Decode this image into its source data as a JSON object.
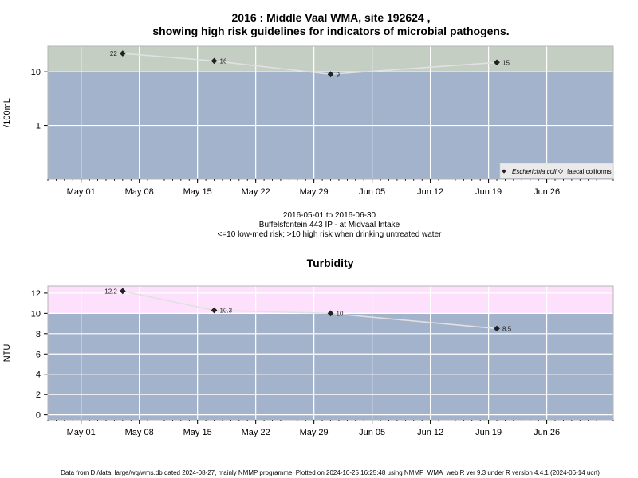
{
  "page": {
    "title_line1": "2016 : Middle Vaal WMA, site 192624 ,",
    "title_line2": "showing high risk guidelines for indicators of microbial pathogens.",
    "caption_line1": "2016-05-01 to 2016-06-30",
    "caption_line2": "Buffelsfontein 443 IP - at Midvaal Intake",
    "caption_line3": "<=10 low-med risk; >10 high risk when drinking untreated water",
    "footer": "Data from D:/data_large/wq/wms.db dated 2024-08-27, mainly NMMP programme. Plotted on 2024-10-25 16:25:48 using NMMP_WMA_web.R ver 9.3 under R version 4.4.1 (2024-06-14 ucrt)"
  },
  "colors": {
    "panel_low": "#a3b3cb",
    "panel_high_micro": "#c4cec3",
    "panel_high_turb": "#fde0fb",
    "grid": "#ffffff",
    "line": "#e1e1e1",
    "marker": "#222222"
  },
  "chart_data": [
    {
      "type": "line",
      "title": "",
      "xlabel": "",
      "ylabel": "/100mL",
      "yscale": "log",
      "xlim": [
        "2016-04-27",
        "2016-07-04"
      ],
      "ylim": [
        0.1,
        30
      ],
      "yticks": [
        1,
        10
      ],
      "ytick_labels": [
        "1",
        "10"
      ],
      "xticks": [
        "2016-05-01",
        "2016-05-08",
        "2016-05-15",
        "2016-05-22",
        "2016-05-29",
        "2016-06-05",
        "2016-06-12",
        "2016-06-19",
        "2016-06-26"
      ],
      "xtick_labels": [
        "May 01",
        "May 08",
        "May 15",
        "May 22",
        "May 29",
        "Jun 05",
        "Jun 12",
        "Jun 19",
        "Jun 26"
      ],
      "threshold": 10,
      "grid": true,
      "legend_position": "bottom-right",
      "series": [
        {
          "name": "Escherichia coli",
          "marker": "filled-diamond",
          "x": [
            "2016-05-06",
            "2016-05-17",
            "2016-05-31",
            "2016-06-20"
          ],
          "y": [
            22,
            16,
            9,
            15
          ],
          "labels": [
            "22",
            "16",
            "9",
            "15"
          ]
        },
        {
          "name": "faecal coliforms",
          "marker": "open-diamond",
          "x": [],
          "y": [],
          "labels": []
        }
      ]
    },
    {
      "type": "line",
      "title": "Turbidity",
      "xlabel": "",
      "ylabel": "NTU",
      "yscale": "linear",
      "xlim": [
        "2016-04-27",
        "2016-07-04"
      ],
      "ylim": [
        -0.5,
        12.7
      ],
      "yticks": [
        0,
        2,
        4,
        6,
        8,
        10,
        12
      ],
      "ytick_labels": [
        "0",
        "2",
        "4",
        "6",
        "8",
        "10",
        "12"
      ],
      "xticks": [
        "2016-05-01",
        "2016-05-08",
        "2016-05-15",
        "2016-05-22",
        "2016-05-29",
        "2016-06-05",
        "2016-06-12",
        "2016-06-19",
        "2016-06-26"
      ],
      "xtick_labels": [
        "May 01",
        "May 08",
        "May 15",
        "May 22",
        "May 29",
        "Jun 05",
        "Jun 12",
        "Jun 19",
        "Jun 26"
      ],
      "threshold": 10,
      "grid": true,
      "series": [
        {
          "marker": "filled-diamond",
          "x": [
            "2016-05-06",
            "2016-05-17",
            "2016-05-31",
            "2016-06-20"
          ],
          "y": [
            12.2,
            10.3,
            10,
            8.5
          ],
          "labels": [
            "12.2",
            "10.3",
            "10",
            "8.5"
          ]
        }
      ]
    }
  ]
}
